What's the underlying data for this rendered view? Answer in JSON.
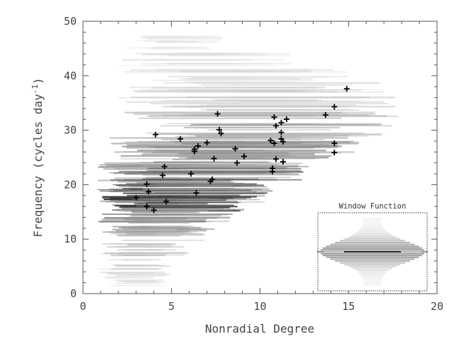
{
  "chart_data": {
    "type": "scatter",
    "title": "",
    "xlabel": "Nonradial Degree",
    "ylabel_main": "Frequency (cycles day",
    "ylabel_sup": "-1",
    "ylabel_close": ")",
    "xlim": [
      0,
      20
    ],
    "ylim": [
      0,
      50
    ],
    "x_ticks": [
      0,
      5,
      10,
      15,
      20
    ],
    "y_ticks": [
      0,
      10,
      20,
      30,
      40,
      50
    ],
    "grid": false,
    "legend": "none",
    "marker": "+",
    "marker_color": "#000000",
    "background_color": "#ffffff",
    "points": [
      [
        4.1,
        29.2
      ],
      [
        5.5,
        28.4
      ],
      [
        6.3,
        26.5
      ],
      [
        6.3,
        26.1
      ],
      [
        6.5,
        27.1
      ],
      [
        7.0,
        27.7
      ],
      [
        7.6,
        33.0
      ],
      [
        7.7,
        30.1
      ],
      [
        7.8,
        29.4
      ],
      [
        7.4,
        24.8
      ],
      [
        8.6,
        26.6
      ],
      [
        8.7,
        24.0
      ],
      [
        9.1,
        25.2
      ],
      [
        10.6,
        28.1
      ],
      [
        10.8,
        32.4
      ],
      [
        10.9,
        30.8
      ],
      [
        10.8,
        27.6
      ],
      [
        11.2,
        31.4
      ],
      [
        11.2,
        29.6
      ],
      [
        11.2,
        28.4
      ],
      [
        11.3,
        27.9
      ],
      [
        11.5,
        32.0
      ],
      [
        10.9,
        24.7
      ],
      [
        11.3,
        24.2
      ],
      [
        10.7,
        23.0
      ],
      [
        10.7,
        22.4
      ],
      [
        13.7,
        32.8
      ],
      [
        14.2,
        34.3
      ],
      [
        14.9,
        37.6
      ],
      [
        14.2,
        27.6
      ],
      [
        14.2,
        25.9
      ],
      [
        3.0,
        17.6
      ],
      [
        3.6,
        20.1
      ],
      [
        3.7,
        18.7
      ],
      [
        3.6,
        16.0
      ],
      [
        4.0,
        15.3
      ],
      [
        4.6,
        23.3
      ],
      [
        4.5,
        21.7
      ],
      [
        4.7,
        16.9
      ],
      [
        6.1,
        22.0
      ],
      [
        6.4,
        18.5
      ],
      [
        7.2,
        20.6
      ],
      [
        7.3,
        21.0
      ]
    ],
    "density_bands": [
      {
        "y": 16.5,
        "xmin": 0.8,
        "xmax": 9.5,
        "xpeak": 3.0,
        "weight": 1.0
      },
      {
        "y": 18.0,
        "xmin": 0.8,
        "xmax": 10.5,
        "xpeak": 3.0,
        "weight": 0.9
      },
      {
        "y": 20.0,
        "xmin": 0.8,
        "xmax": 11.0,
        "xpeak": 3.5,
        "weight": 0.75
      },
      {
        "y": 22.0,
        "xmin": 0.8,
        "xmax": 12.5,
        "xpeak": 3.5,
        "weight": 0.7
      },
      {
        "y": 23.5,
        "xmin": 0.8,
        "xmax": 13.0,
        "xpeak": 4.0,
        "weight": 0.6
      },
      {
        "y": 14.5,
        "xmin": 0.8,
        "xmax": 8.5,
        "xpeak": 3.0,
        "weight": 0.6
      },
      {
        "y": 12.5,
        "xmin": 0.8,
        "xmax": 7.5,
        "xpeak": 2.5,
        "weight": 0.45
      },
      {
        "y": 11.0,
        "xmin": 0.8,
        "xmax": 7.0,
        "xpeak": 2.5,
        "weight": 0.4
      },
      {
        "y": 26.0,
        "xmin": 1.5,
        "xmax": 15.5,
        "xpeak": 7.0,
        "weight": 0.55
      },
      {
        "y": 28.0,
        "xmin": 1.5,
        "xmax": 16.5,
        "xpeak": 8.0,
        "weight": 0.5
      },
      {
        "y": 30.0,
        "xmin": 2.0,
        "xmax": 17.5,
        "xpeak": 9.0,
        "weight": 0.4
      },
      {
        "y": 32.5,
        "xmin": 2.0,
        "xmax": 18.0,
        "xpeak": 10.0,
        "weight": 0.3
      },
      {
        "y": 35.0,
        "xmin": 2.0,
        "xmax": 18.0,
        "xpeak": 10.0,
        "weight": 0.22
      },
      {
        "y": 37.5,
        "xmin": 2.0,
        "xmax": 17.0,
        "xpeak": 9.5,
        "weight": 0.16
      },
      {
        "y": 40.0,
        "xmin": 2.0,
        "xmax": 15.0,
        "xpeak": 8.0,
        "weight": 0.1
      },
      {
        "y": 43.0,
        "xmin": 2.0,
        "xmax": 12.0,
        "xpeak": 6.0,
        "weight": 0.07
      },
      {
        "y": 46.0,
        "xmin": 2.5,
        "xmax": 8.0,
        "xpeak": 4.5,
        "weight": 0.05
      },
      {
        "y": 8.0,
        "xmin": 0.8,
        "xmax": 6.0,
        "xpeak": 2.5,
        "weight": 0.25
      },
      {
        "y": 5.0,
        "xmin": 0.8,
        "xmax": 5.0,
        "xpeak": 2.5,
        "weight": 0.15
      },
      {
        "y": 2.5,
        "xmin": 1.0,
        "xmax": 5.0,
        "xpeak": 2.5,
        "weight": 0.08
      }
    ],
    "inset": {
      "title": "Window Function",
      "position": "bottom-right"
    }
  }
}
